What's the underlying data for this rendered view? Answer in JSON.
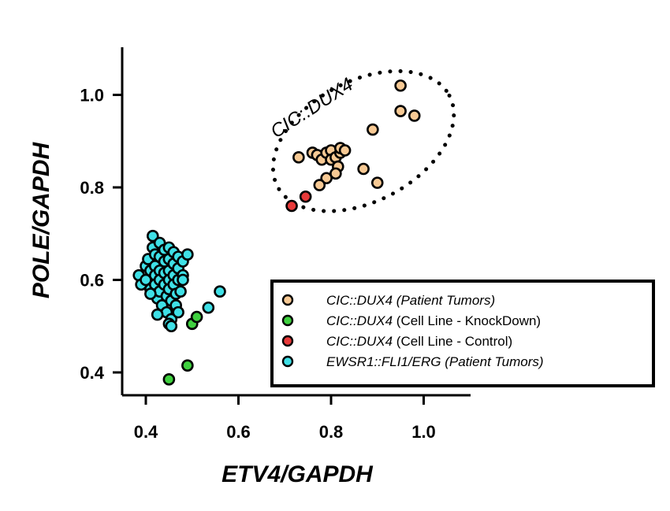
{
  "chart_data": {
    "type": "scatter",
    "xlabel": "ETV4/GAPDH",
    "ylabel": "POLE/GAPDH",
    "xlim": [
      0.35,
      1.12
    ],
    "ylim": [
      0.35,
      1.1
    ],
    "x_ticks": [
      0.4,
      0.6,
      0.8,
      1.0
    ],
    "y_ticks": [
      0.4,
      0.6,
      0.8,
      1.0
    ],
    "x_tick_labels": [
      "0.4",
      "0.6",
      "0.8",
      "1.0"
    ],
    "y_tick_labels": [
      "0.4",
      "0.6",
      "0.8",
      "1.0"
    ],
    "grid": false,
    "legend_position": "bottom-right",
    "annotation": {
      "text": "CIC::DUX4",
      "ellipse": {
        "cx": 0.87,
        "cy": 0.9,
        "rx": 0.21,
        "ry": 0.13,
        "rotation_deg": -28
      }
    },
    "series": [
      {
        "name": "CIC::DUX4 (Patient Tumors)",
        "label_italic": "CIC::DUX4 (Patient Tumors)",
        "label_plain": "",
        "color": "#f7c994",
        "points": [
          [
            0.73,
            0.865
          ],
          [
            0.76,
            0.875
          ],
          [
            0.77,
            0.87
          ],
          [
            0.78,
            0.86
          ],
          [
            0.79,
            0.875
          ],
          [
            0.8,
            0.88
          ],
          [
            0.8,
            0.86
          ],
          [
            0.81,
            0.865
          ],
          [
            0.82,
            0.875
          ],
          [
            0.82,
            0.885
          ],
          [
            0.83,
            0.88
          ],
          [
            0.815,
            0.845
          ],
          [
            0.81,
            0.83
          ],
          [
            0.79,
            0.82
          ],
          [
            0.775,
            0.805
          ],
          [
            0.87,
            0.84
          ],
          [
            0.9,
            0.81
          ],
          [
            0.89,
            0.925
          ],
          [
            0.95,
            1.02
          ],
          [
            0.95,
            0.965
          ],
          [
            0.98,
            0.955
          ]
        ]
      },
      {
        "name": "CIC::DUX4 (Cell Line - KnockDown)",
        "label_italic": "CIC::DUX4",
        "label_plain": " (Cell Line - KnockDown)",
        "color": "#3fd13f",
        "points": [
          [
            0.45,
            0.385
          ],
          [
            0.49,
            0.415
          ],
          [
            0.5,
            0.505
          ],
          [
            0.51,
            0.52
          ]
        ]
      },
      {
        "name": "CIC::DUX4 (Cell Line - Control)",
        "label_italic": "CIC::DUX4",
        "label_plain": " (Cell Line - Control)",
        "color": "#e83a3a",
        "points": [
          [
            0.715,
            0.76
          ],
          [
            0.745,
            0.78
          ]
        ]
      },
      {
        "name": "EWSR1::FLI1/ERG (Patient Tumors)",
        "label_italic": "EWSR1::FLI1/ERG (Patient Tumors)",
        "label_plain": "",
        "color": "#3fe0e6",
        "points": [
          [
            0.385,
            0.61
          ],
          [
            0.39,
            0.59
          ],
          [
            0.4,
            0.63
          ],
          [
            0.4,
            0.6
          ],
          [
            0.405,
            0.645
          ],
          [
            0.41,
            0.62
          ],
          [
            0.41,
            0.58
          ],
          [
            0.415,
            0.695
          ],
          [
            0.415,
            0.67
          ],
          [
            0.42,
            0.655
          ],
          [
            0.42,
            0.63
          ],
          [
            0.42,
            0.61
          ],
          [
            0.42,
            0.59
          ],
          [
            0.425,
            0.56
          ],
          [
            0.43,
            0.68
          ],
          [
            0.43,
            0.65
          ],
          [
            0.43,
            0.62
          ],
          [
            0.43,
            0.6
          ],
          [
            0.43,
            0.575
          ],
          [
            0.435,
            0.545
          ],
          [
            0.44,
            0.665
          ],
          [
            0.44,
            0.64
          ],
          [
            0.44,
            0.615
          ],
          [
            0.44,
            0.59
          ],
          [
            0.445,
            0.565
          ],
          [
            0.445,
            0.53
          ],
          [
            0.45,
            0.67
          ],
          [
            0.45,
            0.645
          ],
          [
            0.45,
            0.62
          ],
          [
            0.45,
            0.6
          ],
          [
            0.45,
            0.58
          ],
          [
            0.455,
            0.555
          ],
          [
            0.455,
            0.515
          ],
          [
            0.46,
            0.66
          ],
          [
            0.46,
            0.635
          ],
          [
            0.46,
            0.61
          ],
          [
            0.46,
            0.59
          ],
          [
            0.465,
            0.57
          ],
          [
            0.465,
            0.545
          ],
          [
            0.47,
            0.65
          ],
          [
            0.47,
            0.625
          ],
          [
            0.47,
            0.6
          ],
          [
            0.47,
            0.53
          ],
          [
            0.475,
            0.575
          ],
          [
            0.48,
            0.64
          ],
          [
            0.48,
            0.61
          ],
          [
            0.48,
            0.6
          ],
          [
            0.49,
            0.655
          ],
          [
            0.45,
            0.505
          ],
          [
            0.535,
            0.54
          ],
          [
            0.56,
            0.575
          ],
          [
            0.41,
            0.57
          ],
          [
            0.425,
            0.525
          ],
          [
            0.455,
            0.5
          ]
        ]
      }
    ]
  }
}
